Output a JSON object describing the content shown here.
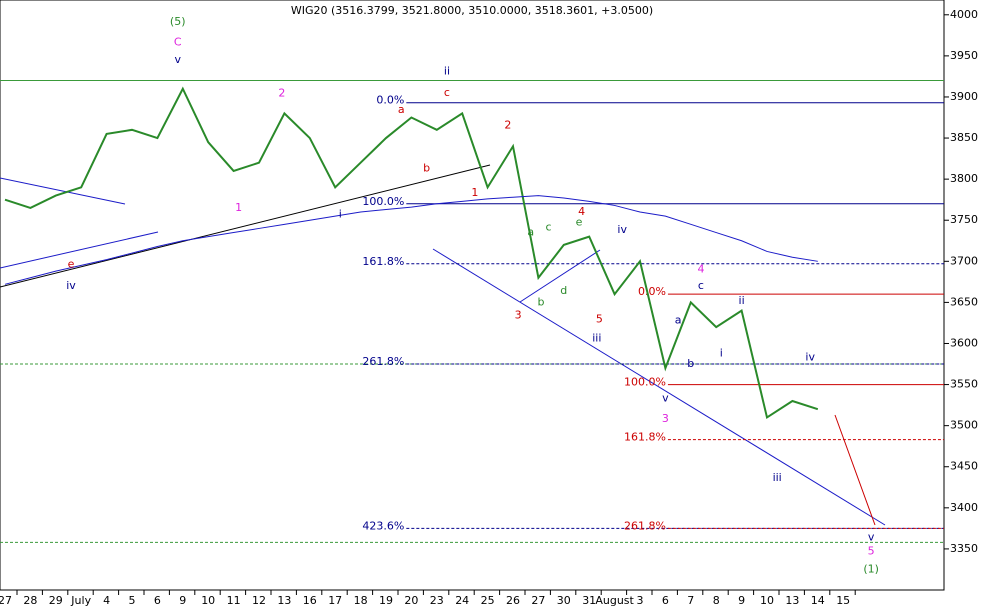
{
  "chart_data": {
    "type": "line",
    "title": "WIG20 (3516.3799, 3521.8000, 3510.0000, 3518.3601, +3.0500)",
    "categories": [
      "27",
      "28",
      "29",
      "July",
      "4",
      "5",
      "6",
      "9",
      "10",
      "11",
      "12",
      "13",
      "16",
      "17",
      "18",
      "19",
      "20",
      "23",
      "24",
      "25",
      "26",
      "27",
      "30",
      "31",
      "August",
      "3",
      "6",
      "7",
      "8",
      "9",
      "10",
      "13",
      "14",
      "15"
    ],
    "series": [
      {
        "color": "#2a8a2a",
        "values": [
          3775,
          3765,
          3780,
          3790,
          3855,
          3860,
          3850,
          3910,
          3845,
          3810,
          3820,
          3880,
          3850,
          3790,
          3820,
          3850,
          3875,
          3860,
          3880,
          3790,
          3840,
          3680,
          3720,
          3730,
          3660,
          3700,
          3570,
          3650,
          3620,
          3640,
          3510,
          3530,
          3520,
          null
        ]
      },
      {
        "color": "#1c1cc8",
        "values": [
          3672,
          3680,
          3688,
          3695,
          3702,
          3710,
          3718,
          3725,
          3730,
          3735,
          3740,
          3745,
          3750,
          3755,
          3760,
          3763,
          3766,
          3770,
          3773,
          3776,
          3778,
          3780,
          3777,
          3773,
          3768,
          3760,
          3755,
          3745,
          3735,
          3725,
          3712,
          3705,
          3700,
          null
        ]
      }
    ],
    "ylim": [
      3300,
      4018
    ],
    "yticks": [
      3350,
      3400,
      3450,
      3500,
      3550,
      3600,
      3650,
      3700,
      3750,
      3800,
      3850,
      3900,
      3950,
      4000
    ],
    "levels": [
      {
        "value": 3920,
        "color": "#3a9a3a"
      },
      {
        "label": "0.0%",
        "value": 3893,
        "color": "#00008b",
        "start": 15.8
      },
      {
        "label": "100.0%",
        "value": 3770,
        "color": "#00008b",
        "start": 15.8
      },
      {
        "label": "161.8%",
        "value": 3697,
        "color": "#00008b",
        "dash": true,
        "start": 15.8
      },
      {
        "value": 3575,
        "color": "#3a9a3a",
        "dash": true
      },
      {
        "label": "261.8%",
        "value": 3575,
        "color": "#00008b",
        "dash": true,
        "start": 15.8
      },
      {
        "label": "423.6%",
        "value": 3375,
        "color": "#00008b",
        "dash": true,
        "start": 15.8
      },
      {
        "value": 3358,
        "color": "#3a9a3a",
        "dash": true
      },
      {
        "label": "0.0%",
        "value": 3660,
        "color": "#cc0000",
        "start": 26.1
      },
      {
        "label": "100.0%",
        "value": 3550,
        "color": "#cc0000",
        "start": 26.1
      },
      {
        "label": "161.8%",
        "value": 3483,
        "color": "#cc0000",
        "dash": true,
        "start": 26.1
      },
      {
        "label": "261.8%",
        "value": 3375,
        "color": "#cc0000",
        "dash": true,
        "start": 26.1
      }
    ],
    "annotations": [
      {
        "text": "(5)",
        "x": 6.8,
        "y": 3991,
        "color": "#2a8a2a"
      },
      {
        "text": "C",
        "x": 6.8,
        "y": 3966,
        "color": "#dd22dd"
      },
      {
        "text": "v",
        "x": 6.8,
        "y": 3945,
        "color": "#00008b"
      },
      {
        "text": "ii",
        "x": 17.4,
        "y": 3931,
        "color": "#00008b"
      },
      {
        "text": "2",
        "x": 10.9,
        "y": 3904,
        "color": "#dd22dd"
      },
      {
        "text": "a",
        "x": 15.6,
        "y": 3884,
        "color": "#cc0000"
      },
      {
        "text": "c",
        "x": 17.4,
        "y": 3905,
        "color": "#cc0000"
      },
      {
        "text": "2",
        "x": 19.8,
        "y": 3865,
        "color": "#cc0000"
      },
      {
        "text": "b",
        "x": 16.6,
        "y": 3813,
        "color": "#cc0000"
      },
      {
        "text": "1",
        "x": 9.2,
        "y": 3765,
        "color": "#dd22dd"
      },
      {
        "text": "i",
        "x": 13.2,
        "y": 3757,
        "color": "#00008b"
      },
      {
        "text": "1",
        "x": 18.5,
        "y": 3783,
        "color": "#cc0000"
      },
      {
        "text": "e",
        "x": 2.6,
        "y": 3696,
        "color": "#cc0000"
      },
      {
        "text": "iv",
        "x": 2.6,
        "y": 3670,
        "color": "#00008b"
      },
      {
        "text": "a",
        "x": 20.7,
        "y": 3735,
        "color": "#2a8a2a"
      },
      {
        "text": "c",
        "x": 21.4,
        "y": 3741,
        "color": "#2a8a2a"
      },
      {
        "text": "e",
        "x": 22.6,
        "y": 3747,
        "color": "#2a8a2a"
      },
      {
        "text": "4",
        "x": 22.7,
        "y": 3760,
        "color": "#cc0000"
      },
      {
        "text": "b",
        "x": 21.1,
        "y": 3650,
        "color": "#2a8a2a"
      },
      {
        "text": "d",
        "x": 22,
        "y": 3664,
        "color": "#2a8a2a"
      },
      {
        "text": "iv",
        "x": 24.3,
        "y": 3738,
        "color": "#00008b"
      },
      {
        "text": "3",
        "x": 20.2,
        "y": 3634,
        "color": "#cc0000"
      },
      {
        "text": "5",
        "x": 23.4,
        "y": 3629,
        "color": "#cc0000"
      },
      {
        "text": "iii",
        "x": 23.3,
        "y": 3606,
        "color": "#00008b"
      },
      {
        "text": "4",
        "x": 27.4,
        "y": 3690,
        "color": "#dd22dd"
      },
      {
        "text": "c",
        "x": 27.4,
        "y": 3670,
        "color": "#00008b"
      },
      {
        "text": "ii",
        "x": 29,
        "y": 3652,
        "color": "#00008b"
      },
      {
        "text": "a",
        "x": 26.5,
        "y": 3628,
        "color": "#00008b"
      },
      {
        "text": "b",
        "x": 27,
        "y": 3575,
        "color": "#00008b"
      },
      {
        "text": "i",
        "x": 28.2,
        "y": 3588,
        "color": "#00008b"
      },
      {
        "text": "v",
        "x": 26,
        "y": 3533,
        "color": "#00008b"
      },
      {
        "text": "3",
        "x": 26,
        "y": 3508,
        "color": "#dd22dd"
      },
      {
        "text": "iv",
        "x": 31.7,
        "y": 3583,
        "color": "#00008b"
      },
      {
        "text": "iii",
        "x": 30.4,
        "y": 3436,
        "color": "#00008b"
      },
      {
        "text": "v",
        "x": 34.1,
        "y": 3364,
        "color": "#00008b"
      },
      {
        "text": "5",
        "x": 34.1,
        "y": 3347,
        "color": "#dd22dd"
      },
      {
        "text": "(1)",
        "x": 34.1,
        "y": 3325,
        "color": "#2a8a2a"
      }
    ]
  }
}
